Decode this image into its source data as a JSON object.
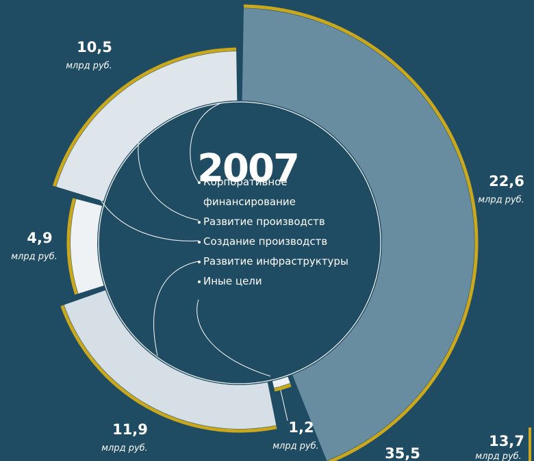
{
  "chart_data": {
    "type": "pie",
    "title": "2007",
    "unit": "млрд руб.",
    "categories": [
      "Корпоративное финансирование",
      "Развитие производств",
      "Создание производств",
      "Развитие инфраструктуры",
      "Иные цели"
    ],
    "values": [
      22.6,
      10.5,
      4.9,
      11.9,
      1.2
    ],
    "value_labels": [
      "22,6",
      "10,5",
      "4,9",
      "11,9",
      "1,2"
    ],
    "colors": [
      "#688ca0",
      "#dfe6eb",
      "#eef2f4",
      "#d6dfe5",
      "#eef2f4"
    ],
    "border_color": "#c9a81e",
    "annotations": [
      "13,7",
      "35,5"
    ]
  }
}
